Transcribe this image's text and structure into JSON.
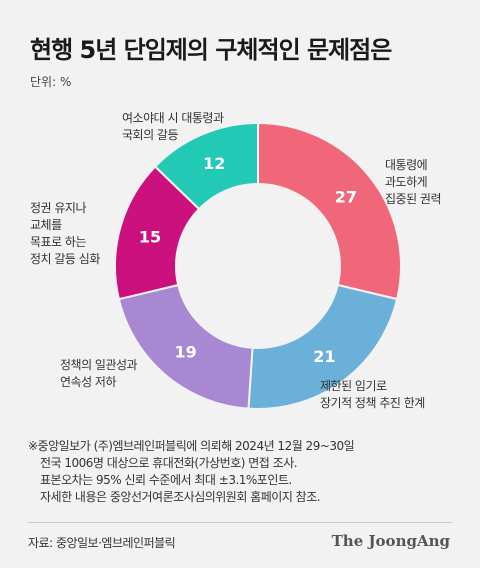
{
  "title": "현행 5년 단임제의 구체적인 문제점은",
  "unit": "단위: %",
  "chart_data": {
    "type": "pie",
    "title": "현행 5년 단임제의 구체적인 문제점은",
    "unit": "%",
    "slices": [
      {
        "label": "대통령에\n과도하게\n집중된 권력",
        "value": 27,
        "color": "#f0677a"
      },
      {
        "label": "제한된 임기로\n장기적 정책 추진 한계",
        "value": 21,
        "color": "#6ab0d8"
      },
      {
        "label": "정책의 일관성과\n연속성 저하",
        "value": 19,
        "color": "#a887d3"
      },
      {
        "label": "정권 유지나\n교체를\n목표로 하는\n정치 갈등 심화",
        "value": 15,
        "color": "#cc107e"
      },
      {
        "label": "여소야대 시 대통령과\n국회의 갈등",
        "value": 12,
        "color": "#22c9b4"
      }
    ]
  },
  "notes": [
    "※중앙일보가 (주)엠브레인퍼블릭에 의뢰해 2024년 12월 29~30일",
    "전국 1006명 대상으로 휴대전화(가상번호) 면접 조사.",
    "표본오차는 95% 신뢰 수준에서 최대 ±3.1%포인트.",
    "자세한 내용은 중앙선거여론조사심의위원회 홈페이지 참조."
  ],
  "source": "자료: 중앙일보·엠브레인퍼블릭",
  "brand": "The JoongAng"
}
